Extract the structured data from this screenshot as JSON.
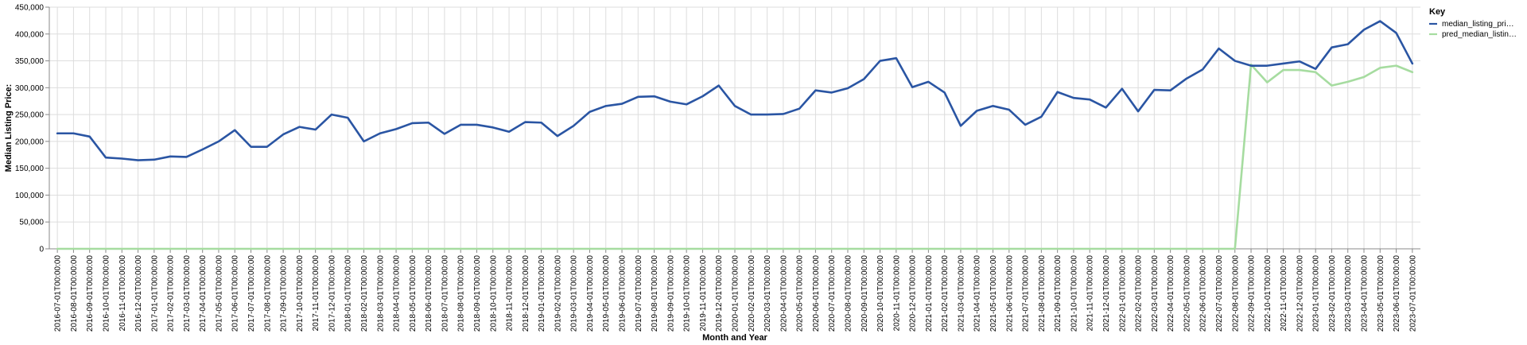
{
  "chart_data": {
    "type": "line",
    "xlabel": "Month and Year",
    "ylabel": "Median Listing Price:",
    "ylim": [
      0,
      450000
    ],
    "y_ticks": [
      "0",
      "50,000",
      "100,000",
      "150,000",
      "200,000",
      "250,000",
      "300,000",
      "350,000",
      "400,000",
      "450,000"
    ],
    "grid": true,
    "legend": {
      "title": "Key",
      "placement": "top-right",
      "entries": [
        "median_listing_pri…",
        "pred_median_listin…"
      ]
    },
    "x": [
      "2016-07-01T00:00:00",
      "2016-08-01T00:00:00",
      "2016-09-01T00:00:00",
      "2016-10-01T00:00:00",
      "2016-11-01T00:00:00",
      "2016-12-01T00:00:00",
      "2017-01-01T00:00:00",
      "2017-02-01T00:00:00",
      "2017-03-01T00:00:00",
      "2017-04-01T00:00:00",
      "2017-05-01T00:00:00",
      "2017-06-01T00:00:00",
      "2017-07-01T00:00:00",
      "2017-08-01T00:00:00",
      "2017-09-01T00:00:00",
      "2017-10-01T00:00:00",
      "2017-11-01T00:00:00",
      "2017-12-01T00:00:00",
      "2018-01-01T00:00:00",
      "2018-02-01T00:00:00",
      "2018-03-01T00:00:00",
      "2018-04-01T00:00:00",
      "2018-05-01T00:00:00",
      "2018-06-01T00:00:00",
      "2018-07-01T00:00:00",
      "2018-08-01T00:00:00",
      "2018-09-01T00:00:00",
      "2018-10-01T00:00:00",
      "2018-11-01T00:00:00",
      "2018-12-01T00:00:00",
      "2019-01-01T00:00:00",
      "2019-02-01T00:00:00",
      "2019-03-01T00:00:00",
      "2019-04-01T00:00:00",
      "2019-05-01T00:00:00",
      "2019-06-01T00:00:00",
      "2019-07-01T00:00:00",
      "2019-08-01T00:00:00",
      "2019-09-01T00:00:00",
      "2019-10-01T00:00:00",
      "2019-11-01T00:00:00",
      "2019-12-01T00:00:00",
      "2020-01-01T00:00:00",
      "2020-02-01T00:00:00",
      "2020-03-01T00:00:00",
      "2020-04-01T00:00:00",
      "2020-05-01T00:00:00",
      "2020-06-01T00:00:00",
      "2020-07-01T00:00:00",
      "2020-08-01T00:00:00",
      "2020-09-01T00:00:00",
      "2020-10-01T00:00:00",
      "2020-11-01T00:00:00",
      "2020-12-01T00:00:00",
      "2021-01-01T00:00:00",
      "2021-02-01T00:00:00",
      "2021-03-01T00:00:00",
      "2021-04-01T00:00:00",
      "2021-05-01T00:00:00",
      "2021-06-01T00:00:00",
      "2021-07-01T00:00:00",
      "2021-08-01T00:00:00",
      "2021-09-01T00:00:00",
      "2021-10-01T00:00:00",
      "2021-11-01T00:00:00",
      "2021-12-01T00:00:00",
      "2022-01-01T00:00:00",
      "2022-02-01T00:00:00",
      "2022-03-01T00:00:00",
      "2022-04-01T00:00:00",
      "2022-05-01T00:00:00",
      "2022-06-01T00:00:00",
      "2022-07-01T00:00:00",
      "2022-08-01T00:00:00",
      "2022-09-01T00:00:00",
      "2022-10-01T00:00:00",
      "2022-11-01T00:00:00",
      "2022-12-01T00:00:00",
      "2023-01-01T00:00:00",
      "2023-02-01T00:00:00",
      "2023-03-01T00:00:00",
      "2023-04-01T00:00:00",
      "2023-05-01T00:00:00",
      "2023-06-01T00:00:00",
      "2023-07-01T00:00:00"
    ],
    "series": [
      {
        "name": "median_listing_pri…",
        "color": "#2a55a3",
        "values": [
          215000,
          215000,
          209000,
          170000,
          168000,
          165000,
          166000,
          172000,
          171000,
          185000,
          200000,
          221000,
          190000,
          190000,
          213000,
          227000,
          222000,
          250000,
          244000,
          200000,
          215000,
          223000,
          234000,
          235000,
          214000,
          231000,
          231000,
          226000,
          218000,
          236000,
          235000,
          210000,
          229000,
          255000,
          266000,
          270000,
          283000,
          284000,
          274000,
          269000,
          284000,
          304000,
          266000,
          250000,
          250000,
          251000,
          261000,
          295000,
          291000,
          299000,
          316000,
          350000,
          355000,
          301000,
          311000,
          291000,
          229000,
          257000,
          266000,
          259000,
          231000,
          246000,
          292000,
          281000,
          278000,
          263000,
          298000,
          256000,
          296000,
          295000,
          317000,
          334000,
          373000,
          350000,
          341000,
          341000,
          345000,
          349000,
          335000,
          375000,
          381000,
          408000,
          424000,
          402000,
          345000
        ]
      },
      {
        "name": "pred_median_listin…",
        "color": "#a6dca0",
        "values": [
          0,
          0,
          0,
          0,
          0,
          0,
          0,
          0,
          0,
          0,
          0,
          0,
          0,
          0,
          0,
          0,
          0,
          0,
          0,
          0,
          0,
          0,
          0,
          0,
          0,
          0,
          0,
          0,
          0,
          0,
          0,
          0,
          0,
          0,
          0,
          0,
          0,
          0,
          0,
          0,
          0,
          0,
          0,
          0,
          0,
          0,
          0,
          0,
          0,
          0,
          0,
          0,
          0,
          0,
          0,
          0,
          0,
          0,
          0,
          0,
          0,
          0,
          0,
          0,
          0,
          0,
          0,
          0,
          0,
          0,
          0,
          0,
          0,
          0,
          343000,
          310000,
          333000,
          333000,
          329000,
          304000,
          311000,
          320000,
          337000,
          341000,
          329000
        ]
      }
    ],
    "colors": {
      "grid": "#dddddd",
      "axis": "#888888"
    }
  }
}
